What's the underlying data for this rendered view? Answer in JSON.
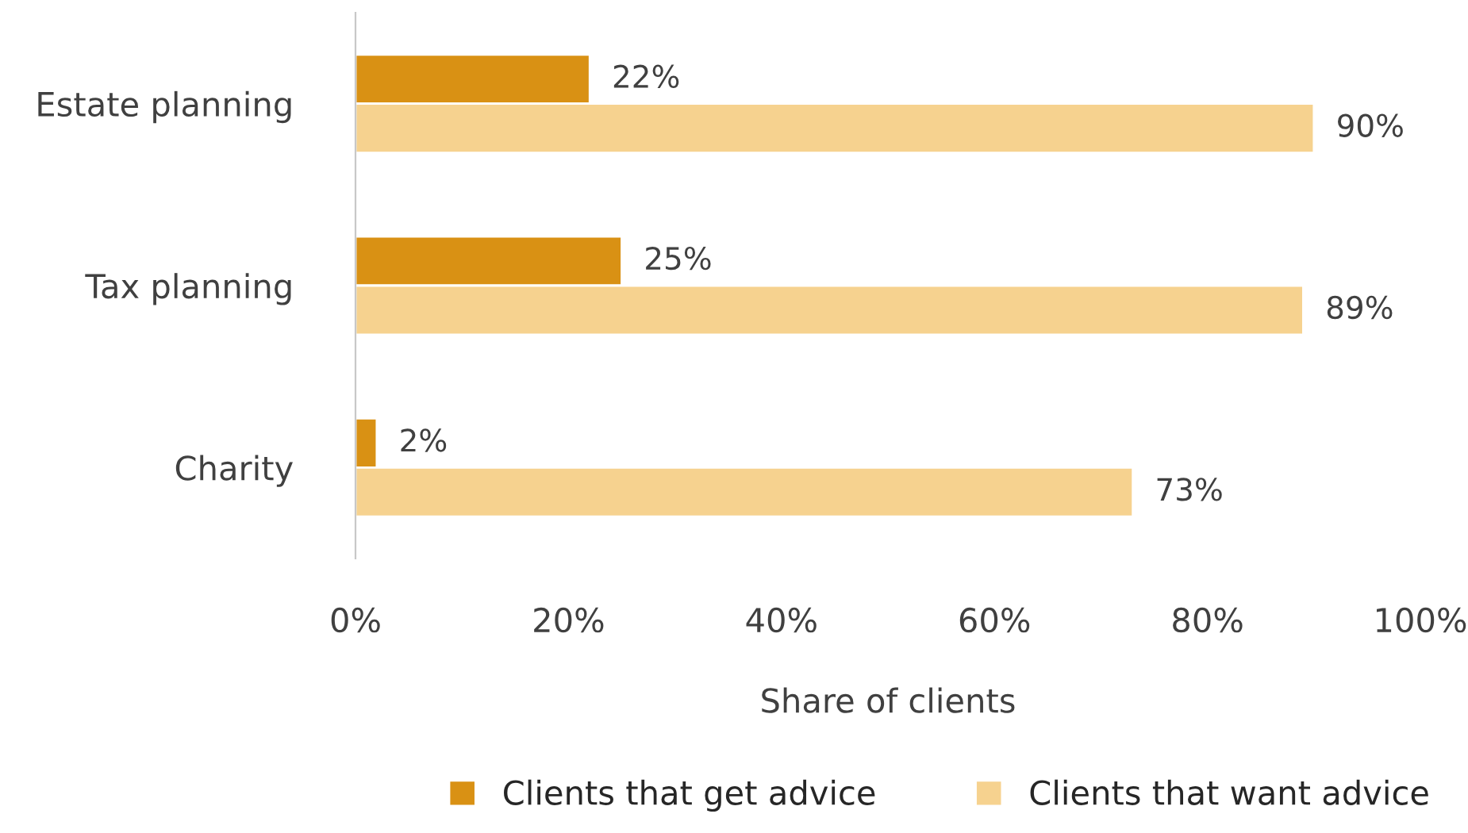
{
  "chart_data": {
    "type": "bar",
    "orientation": "horizontal",
    "xlabel": "Share of clients",
    "categories": [
      "Estate planning",
      "Tax planning",
      "Charity"
    ],
    "series": [
      {
        "name": "Clients that get advice",
        "color": "#d99114",
        "values": [
          22,
          25,
          2
        ],
        "value_labels": [
          "22%",
          "25%",
          "2%"
        ]
      },
      {
        "name": "Clients that want advice",
        "color": "#f6d28f",
        "values": [
          90,
          89,
          73
        ],
        "value_labels": [
          "90%",
          "89%",
          "73%"
        ]
      }
    ],
    "xlim": [
      0,
      100
    ],
    "xticks": [
      {
        "value": 0,
        "label": "0%"
      },
      {
        "value": 20,
        "label": "20%"
      },
      {
        "value": 40,
        "label": "40%"
      },
      {
        "value": 60,
        "label": "60%"
      },
      {
        "value": 80,
        "label": "80%"
      },
      {
        "value": 100,
        "label": "100%"
      }
    ],
    "grid": false,
    "legend": "bottom"
  }
}
